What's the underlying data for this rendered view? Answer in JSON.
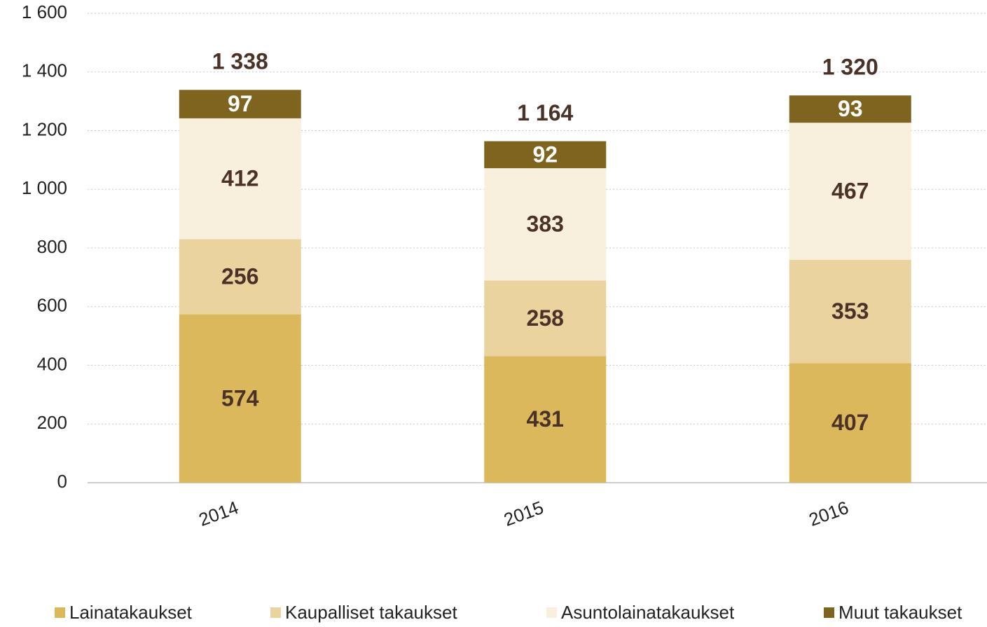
{
  "chart_data": {
    "type": "stacked_bar",
    "categories": [
      "2014",
      "2015",
      "2016"
    ],
    "series": [
      {
        "name": "Lainatakaukset",
        "color": "#dbb85c",
        "label_color": "#4a3228",
        "values": [
          574,
          431,
          407
        ]
      },
      {
        "name": "Kaupalliset takaukset",
        "color": "#ead39e",
        "label_color": "#4a3228",
        "values": [
          256,
          258,
          353
        ]
      },
      {
        "name": "Asuntolainatakaukset",
        "color": "#f8efdc",
        "label_color": "#4a3228",
        "values": [
          412,
          383,
          467
        ]
      },
      {
        "name": "Muut takaukset",
        "color": "#7f6420",
        "label_color": "#ffffff",
        "values": [
          97,
          92,
          93
        ]
      }
    ],
    "total_labels": [
      "1 338",
      "1 164",
      "1 320"
    ],
    "ylim": [
      0,
      1600
    ],
    "yticks": [
      0,
      200,
      400,
      600,
      800,
      {
        "value": 1000,
        "label": "1 000"
      },
      {
        "value": 1200,
        "label": "1 200"
      },
      {
        "value": 1400,
        "label": "1 400"
      },
      {
        "value": 1600,
        "label": "1 600"
      }
    ],
    "grid": true,
    "legend": "bottom"
  }
}
